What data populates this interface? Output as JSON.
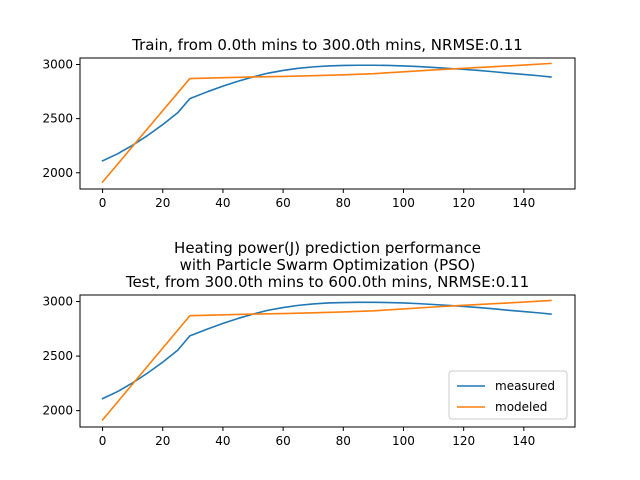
{
  "chart_data": [
    {
      "type": "line",
      "title": "Train, from 0.0th mins to 300.0th mins, NRMSE:0.11",
      "xlabel": "",
      "ylabel": "",
      "xlim": [
        -7.5,
        157
      ],
      "ylim": [
        1850,
        3060
      ],
      "xticks": [
        0,
        20,
        40,
        60,
        80,
        100,
        120,
        140
      ],
      "yticks": [
        2000,
        2500,
        3000
      ],
      "grid": false,
      "series": [
        {
          "name": "measured",
          "color": "#1f77b4",
          "x": [
            0,
            5,
            10,
            15,
            20,
            25,
            29,
            35,
            40,
            45,
            50,
            55,
            60,
            65,
            70,
            75,
            80,
            85,
            90,
            95,
            100,
            105,
            110,
            115,
            120,
            125,
            130,
            135,
            140,
            145,
            149
          ],
          "y": [
            2110,
            2175,
            2255,
            2345,
            2445,
            2555,
            2685,
            2750,
            2800,
            2845,
            2885,
            2920,
            2945,
            2965,
            2978,
            2987,
            2991,
            2993,
            2993,
            2991,
            2987,
            2981,
            2973,
            2964,
            2955,
            2945,
            2933,
            2920,
            2908,
            2896,
            2885
          ]
        },
        {
          "name": "modeled",
          "color": "#ff7f0e",
          "x": [
            0,
            29,
            50,
            60,
            70,
            80,
            90,
            100,
            110,
            120,
            130,
            140,
            149
          ],
          "y": [
            1915,
            2870,
            2885,
            2890,
            2897,
            2905,
            2915,
            2932,
            2950,
            2965,
            2980,
            2995,
            3010
          ]
        }
      ]
    },
    {
      "type": "line",
      "title": "Heating power(J) prediction performance\nwith Particle Swarm Optimization (PSO)\nTest, from 300.0th mins to 600.0th mins, NRMSE:0.11",
      "xlabel": "",
      "ylabel": "",
      "xlim": [
        -7.5,
        157
      ],
      "ylim": [
        1850,
        3060
      ],
      "xticks": [
        0,
        20,
        40,
        60,
        80,
        100,
        120,
        140
      ],
      "yticks": [
        2000,
        2500,
        3000
      ],
      "grid": false,
      "legend": "lower-right",
      "series": [
        {
          "name": "measured",
          "color": "#1f77b4",
          "x": [
            0,
            5,
            10,
            15,
            20,
            25,
            29,
            35,
            40,
            45,
            50,
            55,
            60,
            65,
            70,
            75,
            80,
            85,
            90,
            95,
            100,
            105,
            110,
            115,
            120,
            125,
            130,
            135,
            140,
            145,
            149
          ],
          "y": [
            2110,
            2175,
            2255,
            2345,
            2445,
            2555,
            2685,
            2750,
            2800,
            2845,
            2885,
            2920,
            2945,
            2965,
            2978,
            2987,
            2991,
            2993,
            2993,
            2991,
            2987,
            2981,
            2973,
            2964,
            2955,
            2945,
            2933,
            2920,
            2908,
            2896,
            2885
          ]
        },
        {
          "name": "modeled",
          "color": "#ff7f0e",
          "x": [
            0,
            29,
            50,
            60,
            70,
            80,
            90,
            100,
            110,
            120,
            130,
            140,
            149
          ],
          "y": [
            1915,
            2870,
            2885,
            2890,
            2897,
            2905,
            2915,
            2932,
            2950,
            2965,
            2980,
            2995,
            3010
          ]
        }
      ]
    }
  ]
}
